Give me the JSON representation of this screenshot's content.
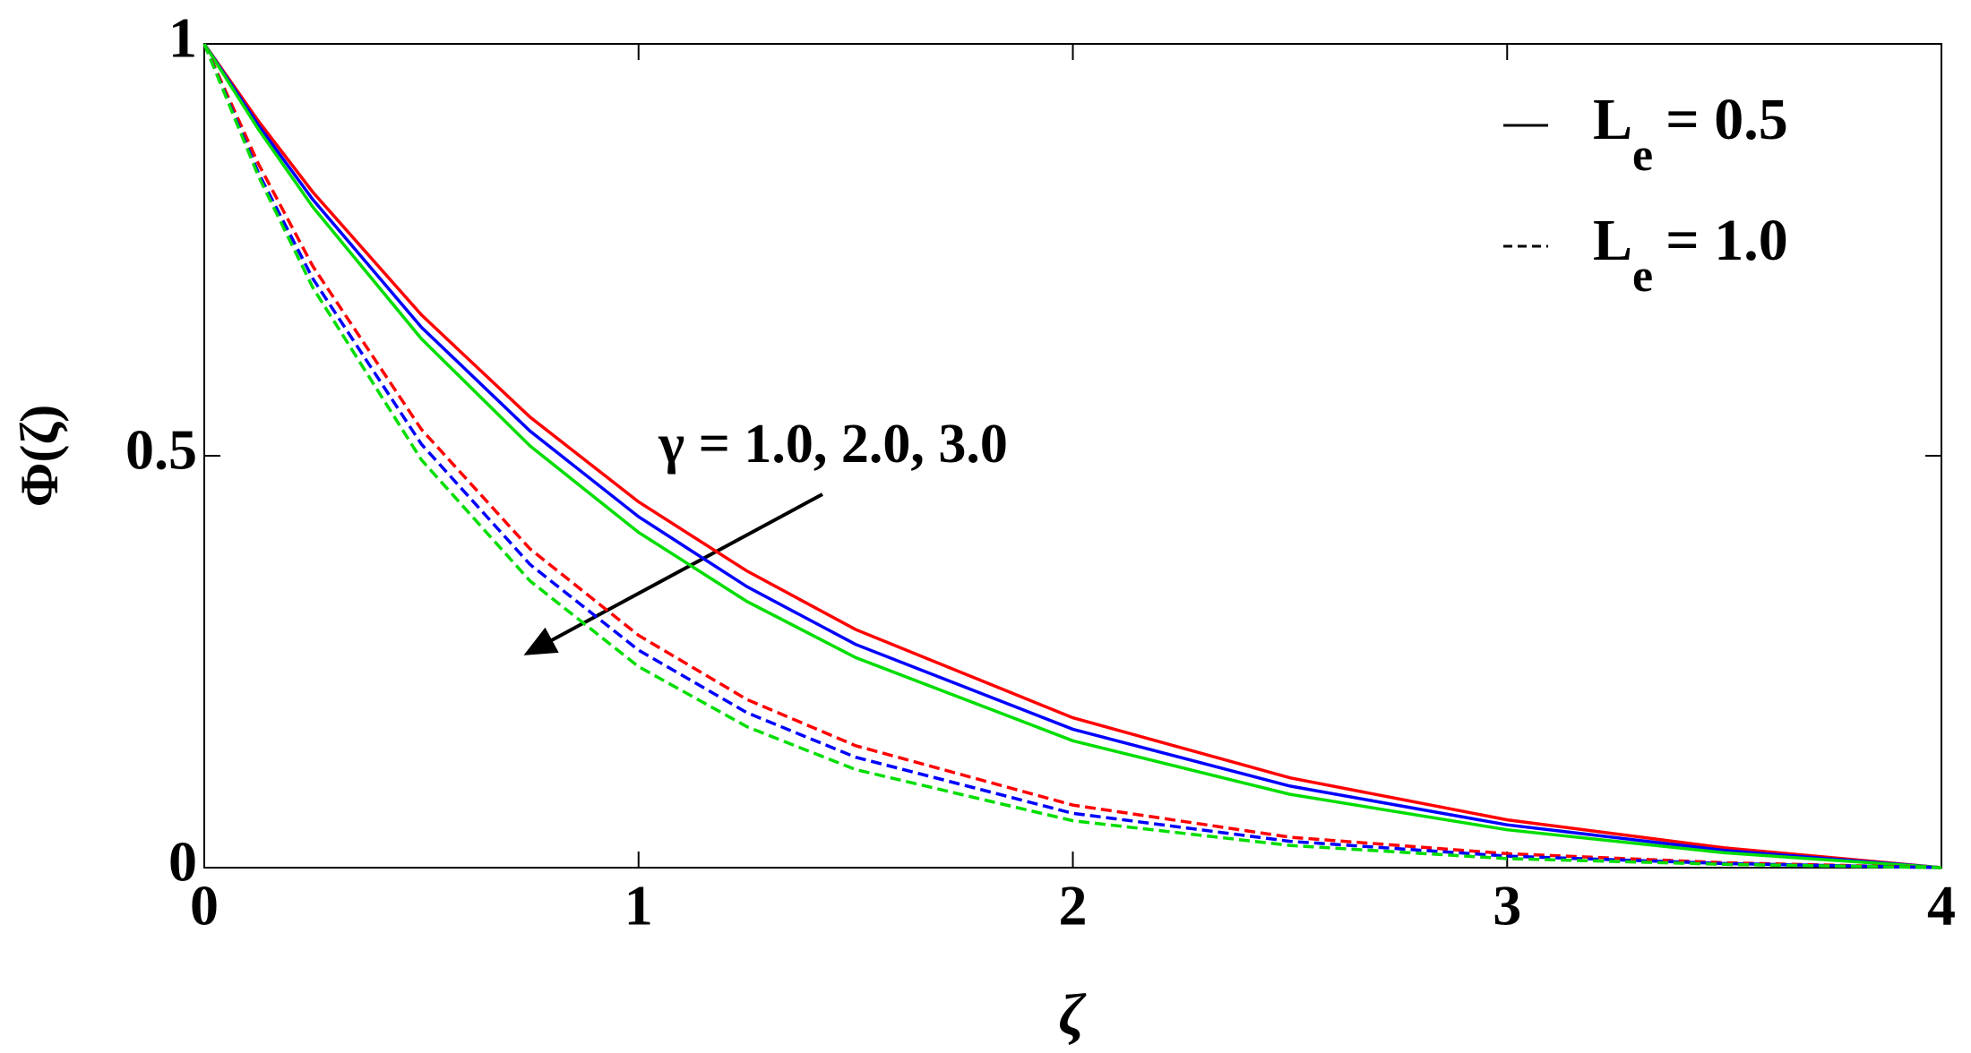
{
  "chart_data": {
    "type": "line",
    "xlabel": "ζ",
    "ylabel": "Φ(ζ)",
    "x": [
      0,
      0.125,
      0.25,
      0.5,
      0.75,
      1,
      1.25,
      1.5,
      2,
      2.5,
      3,
      3.5,
      4
    ],
    "series": [
      {
        "color": "#ff0000",
        "dash": false,
        "values": [
          1,
          0.906,
          0.82,
          0.671,
          0.547,
          0.444,
          0.36,
          0.289,
          0.182,
          0.109,
          0.058,
          0.024,
          0
        ]
      },
      {
        "color": "#0000ff",
        "dash": false,
        "values": [
          1,
          0.901,
          0.811,
          0.656,
          0.53,
          0.426,
          0.341,
          0.271,
          0.168,
          0.099,
          0.052,
          0.021,
          0
        ]
      },
      {
        "color": "#00dd00",
        "dash": false,
        "values": [
          1,
          0.896,
          0.802,
          0.642,
          0.512,
          0.407,
          0.323,
          0.255,
          0.154,
          0.089,
          0.046,
          0.018,
          0
        ]
      },
      {
        "color": "#ff0000",
        "dash": true,
        "values": [
          1,
          0.854,
          0.73,
          0.532,
          0.387,
          0.282,
          0.204,
          0.148,
          0.076,
          0.037,
          0.017,
          0.006,
          0
        ]
      },
      {
        "color": "#0000ff",
        "dash": true,
        "values": [
          1,
          0.843,
          0.715,
          0.514,
          0.368,
          0.264,
          0.188,
          0.134,
          0.066,
          0.032,
          0.014,
          0.005,
          0
        ]
      },
      {
        "color": "#00dd00",
        "dash": true,
        "values": [
          1,
          0.839,
          0.704,
          0.495,
          0.348,
          0.244,
          0.171,
          0.119,
          0.057,
          0.027,
          0.011,
          0.004,
          0
        ]
      }
    ],
    "xlim": [
      0,
      4
    ],
    "ylim": [
      0,
      1
    ],
    "xticks": [
      0,
      1,
      2,
      3,
      4
    ],
    "yticks": [
      0,
      0.5,
      1
    ],
    "grid": false,
    "legend": {
      "position": "upper right",
      "entries": [
        {
          "symbol": "L",
          "subscript": "e",
          "text": "= 0.5",
          "dash": false
        },
        {
          "symbol": "L",
          "subscript": "e",
          "text": "= 1.0",
          "dash": true
        }
      ]
    },
    "annotation": {
      "text": "γ = 1.0, 2.0, 3.0"
    }
  }
}
